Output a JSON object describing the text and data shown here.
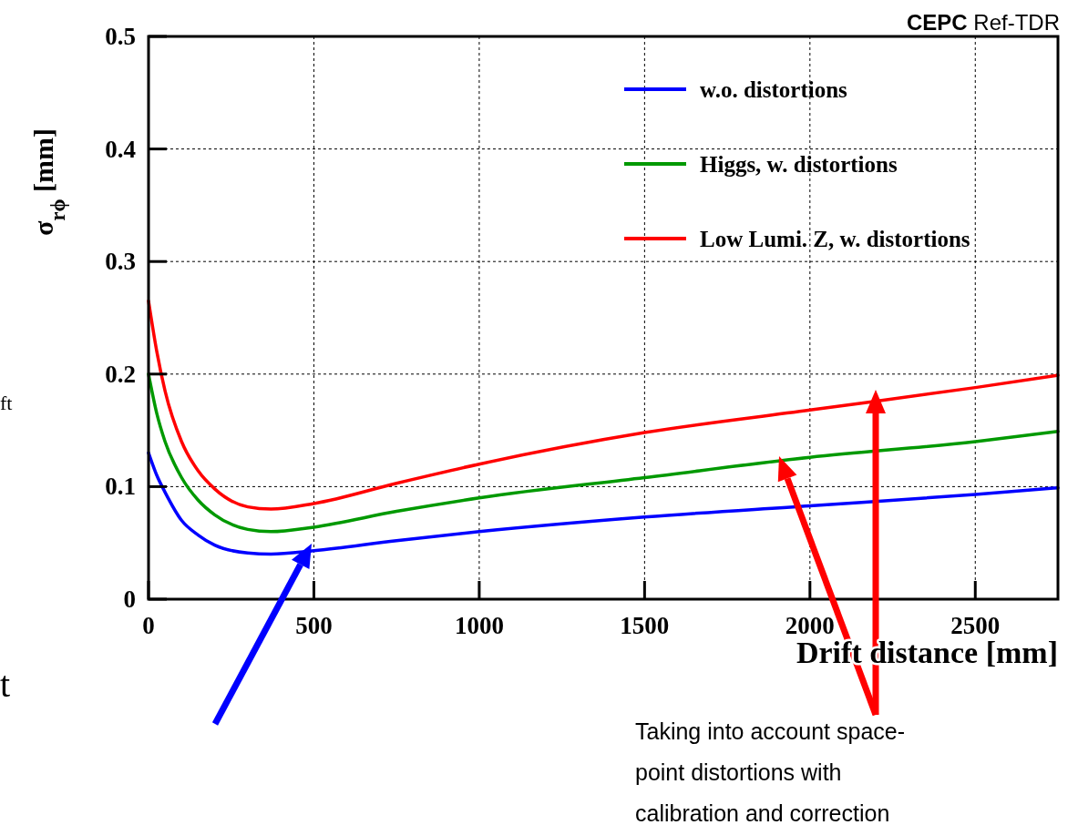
{
  "chart_data": {
    "type": "line",
    "xlabel": "Drift distance [mm]",
    "ylabel": "σ$_{rϕ}$ [mm]",
    "xlim": [
      0,
      2750
    ],
    "ylim": [
      0,
      0.5
    ],
    "xticks": [
      0,
      500,
      1000,
      1500,
      2000,
      2500
    ],
    "yticks": [
      0,
      0.1,
      0.2,
      0.3,
      0.4,
      0.5
    ],
    "grid": true,
    "legend": "top right",
    "line_style": "solid",
    "marker": "none",
    "x": [
      0,
      25,
      50,
      100,
      150,
      200,
      300,
      370,
      500,
      750,
      1000,
      1500,
      2000,
      2500,
      2750
    ],
    "series": [
      {
        "name": "w.o. distortions",
        "color": "#0000ff",
        "values": [
          0.13,
          0.11,
          0.095,
          0.07,
          0.057,
          0.048,
          0.041,
          0.04,
          0.043,
          0.052,
          0.06,
          0.073,
          0.083,
          0.093,
          0.099
        ]
      },
      {
        "name": "Higgs, w. distortions",
        "color": "#009900",
        "values": [
          0.2,
          0.165,
          0.14,
          0.108,
          0.088,
          0.075,
          0.062,
          0.06,
          0.064,
          0.078,
          0.09,
          0.108,
          0.126,
          0.14,
          0.149
        ]
      },
      {
        "name": "Low Lumi. Z, w. distortions",
        "color": "#ff0000",
        "values": [
          0.265,
          0.22,
          0.185,
          0.14,
          0.114,
          0.098,
          0.082,
          0.08,
          0.085,
          0.103,
          0.12,
          0.148,
          0.168,
          0.188,
          0.199
        ]
      }
    ],
    "annotations": [
      "CEPC Ref-TDR",
      "Taking into account space-point distortions with calibration and correction",
      "ft",
      "t"
    ]
  }
}
